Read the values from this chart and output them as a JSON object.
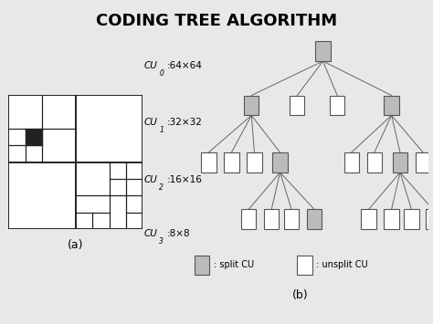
{
  "title": "CODING TREE ALGORITHM",
  "title_fontsize": 13,
  "fig_bg": "#e8e8e8",
  "label_a": "(a)",
  "label_b": "(b)",
  "level_labels": [
    {
      "text": "CU",
      "sub": "0",
      "suffix": ":64×64",
      "y": 8.5
    },
    {
      "text": "CU",
      "sub": "1",
      "suffix": ":32×32",
      "y": 6.5
    },
    {
      "text": "CU",
      "sub": "2",
      "suffix": ":16×16",
      "y": 4.5
    },
    {
      "text": "CU",
      "sub": "3",
      "suffix": ":8×8",
      "y": 2.6
    }
  ],
  "node_split_color": "#bbbbbb",
  "node_unsplit_color": "#ffffff",
  "node_edge_color": "#555555",
  "line_color": "#666666",
  "grid_line_color": "#222222",
  "dark_block_color": "#222222",
  "white": "#ffffff"
}
